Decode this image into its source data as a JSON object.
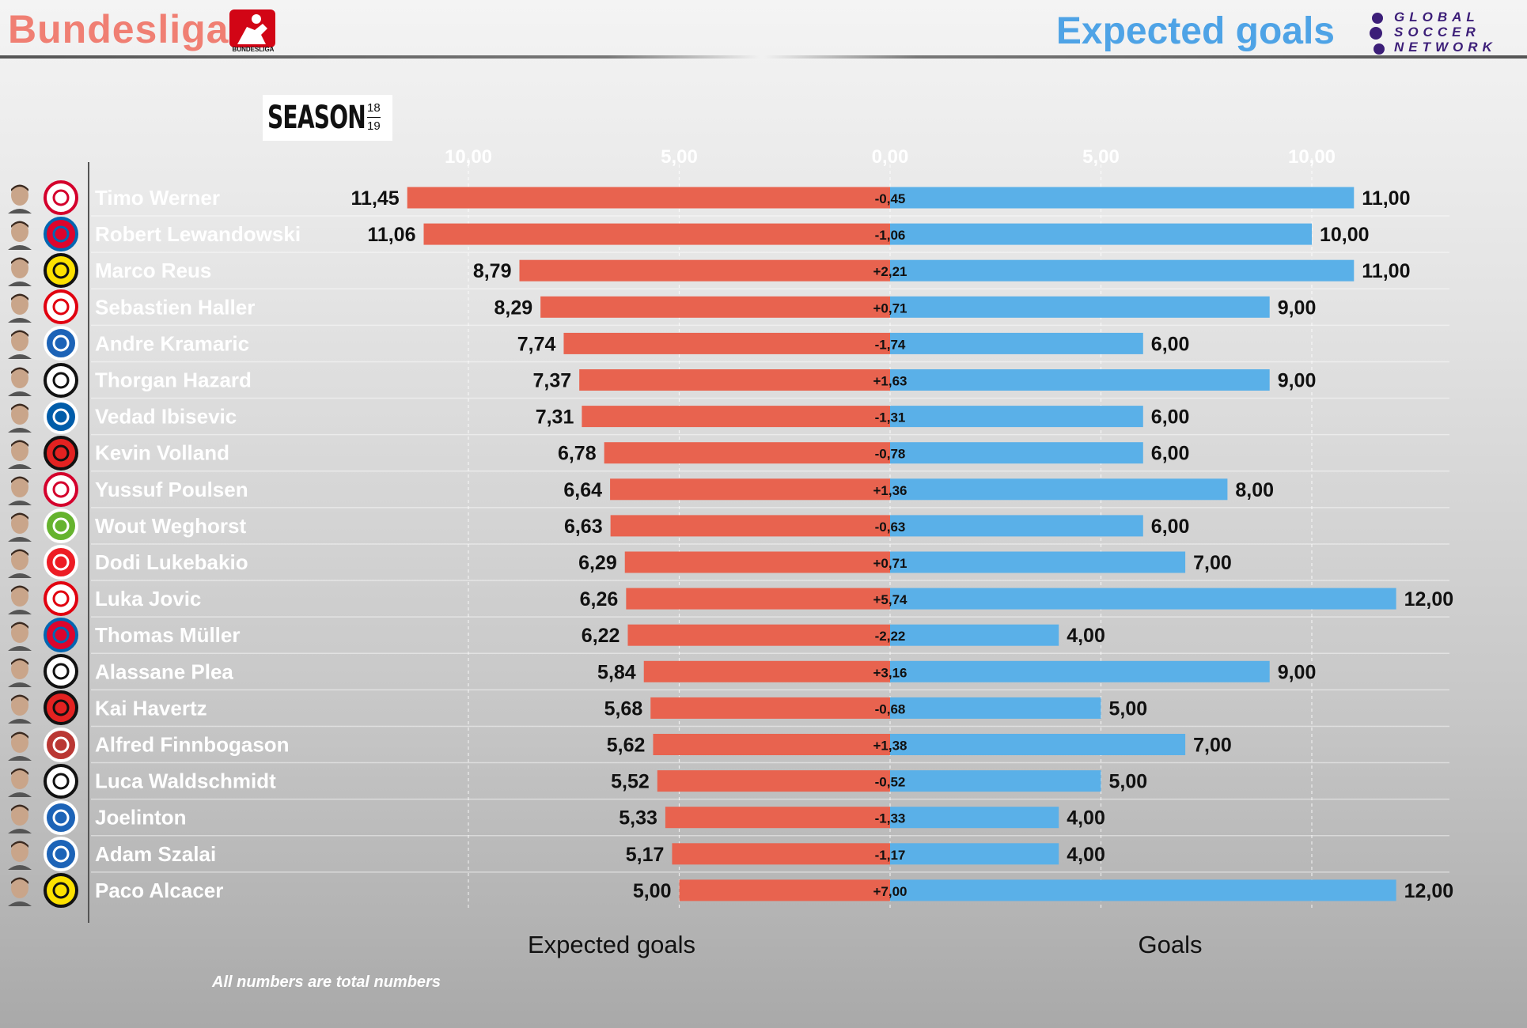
{
  "header": {
    "league": "Bundesliga",
    "league_logo_text": "BUNDESLIGA",
    "title": "Expected goals",
    "publisher": [
      "GLOBAL",
      "SOCCER",
      "NETWORK"
    ]
  },
  "season": {
    "word": "SEASON",
    "year_top": "18",
    "year_bottom": "19"
  },
  "footnote": "All numbers are total numbers",
  "colors": {
    "xg_bar": "#e8634f",
    "goals_bar": "#5ab0e8",
    "player_name": "#ffffff",
    "header_red": "#f07f73",
    "header_blue": "#4ea3e6"
  },
  "chart_data": {
    "type": "bar",
    "orientation": "horizontal-diverging",
    "series": [
      {
        "name": "Expected goals",
        "values": [
          11.45,
          11.06,
          8.79,
          8.29,
          7.74,
          7.37,
          7.31,
          6.78,
          6.64,
          6.63,
          6.29,
          6.26,
          6.22,
          5.84,
          5.68,
          5.62,
          5.52,
          5.33,
          5.17,
          5.0
        ]
      },
      {
        "name": "Goals",
        "values": [
          11,
          10,
          11,
          9,
          6,
          9,
          6,
          6,
          8,
          6,
          7,
          12,
          4,
          9,
          5,
          7,
          5,
          4,
          4,
          12
        ]
      }
    ],
    "categories": [
      "Timo Werner",
      "Robert Lewandowski",
      "Marco Reus",
      "Sebastien Haller",
      "Andre Kramaric",
      "Thorgan Hazard",
      "Vedad Ibisevic",
      "Kevin Volland",
      "Yussuf Poulsen",
      "Wout Weghorst",
      "Dodi Lukebakio",
      "Luka Jovic",
      "Thomas Müller",
      "Alassane Plea",
      "Kai Havertz",
      "Alfred Finnbogason",
      "Luca Waldschmidt",
      "Joelinton",
      "Adam Szalai",
      "Paco Alcacer"
    ],
    "teams": [
      "rb-leipzig",
      "bayern",
      "dortmund",
      "frankfurt",
      "hoffenheim",
      "gladbach",
      "hertha",
      "leverkusen",
      "rb-leipzig",
      "wolfsburg",
      "duesseldorf",
      "frankfurt",
      "bayern",
      "gladbach",
      "leverkusen",
      "augsburg",
      "freiburg",
      "hoffenheim",
      "hoffenheim",
      "dortmund"
    ],
    "xg_labels": [
      "11,45",
      "11,06",
      "8,79",
      "8,29",
      "7,74",
      "7,37",
      "7,31",
      "6,78",
      "6,64",
      "6,63",
      "6,29",
      "6,26",
      "6,22",
      "5,84",
      "5,68",
      "5,62",
      "5,52",
      "5,33",
      "5,17",
      "5,00"
    ],
    "goals_labels": [
      "11,00",
      "10,00",
      "11,00",
      "9,00",
      "6,00",
      "9,00",
      "6,00",
      "6,00",
      "8,00",
      "6,00",
      "7,00",
      "12,00",
      "4,00",
      "9,00",
      "5,00",
      "7,00",
      "5,00",
      "4,00",
      "4,00",
      "12,00"
    ],
    "diff_labels": [
      "-0,45",
      "-1,06",
      "+2,21",
      "+0,71",
      "-1,74",
      "+1,63",
      "-1,31",
      "-0,78",
      "+1,36",
      "-0,63",
      "+0,71",
      "+5,74",
      "-2,22",
      "+3,16",
      "-0,68",
      "+1,38",
      "-0,52",
      "-1,33",
      "-1,17",
      "+7,00"
    ],
    "axis_ticks": [
      "10,00",
      "5,00",
      "0,00",
      "5,00",
      "10,00"
    ],
    "axis_tick_values": [
      -10,
      -5,
      0,
      5,
      10
    ],
    "xlabel_left": "Expected goals",
    "xlabel_right": "Goals",
    "xlim": [
      -11.45,
      12
    ],
    "grid": true
  }
}
